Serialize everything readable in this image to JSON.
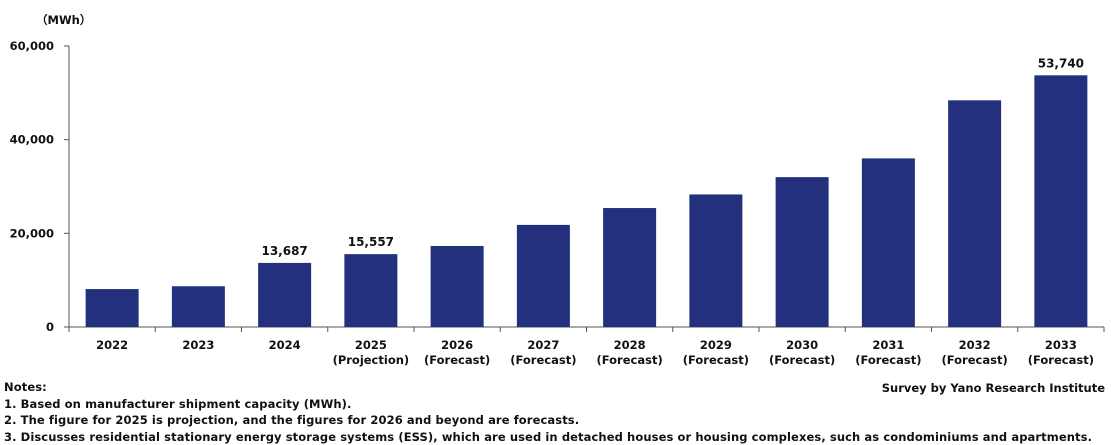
{
  "chart_data": {
    "type": "bar",
    "unit_label": "（MWh）",
    "categories": [
      [
        "2022",
        ""
      ],
      [
        "2023",
        ""
      ],
      [
        "2024",
        ""
      ],
      [
        "2025",
        "(Projection)"
      ],
      [
        "2026",
        "(Forecast)"
      ],
      [
        "2027",
        "(Forecast)"
      ],
      [
        "2028",
        "(Forecast)"
      ],
      [
        "2029",
        "(Forecast)"
      ],
      [
        "2030",
        "(Forecast)"
      ],
      [
        "2031",
        "(Forecast)"
      ],
      [
        "2032",
        "(Forecast)"
      ],
      [
        "2033",
        "(Forecast)"
      ]
    ],
    "values": [
      8100,
      8700,
      13687,
      15557,
      17300,
      21800,
      25400,
      28300,
      32000,
      36000,
      48400,
      53740
    ],
    "data_labels": [
      "",
      "",
      "13,687",
      "15,557",
      "",
      "",
      "",
      "",
      "",
      "",
      "",
      "53,740"
    ],
    "ylim": [
      0,
      60000
    ],
    "yticks": [
      0,
      20000,
      40000,
      60000
    ],
    "ytick_labels": [
      "0",
      "20,000",
      "40,000",
      "60,000"
    ],
    "grid": false,
    "bar_color": "#22307d"
  },
  "notes": {
    "heading": "Notes:",
    "items": [
      "1. Based on manufacturer shipment capacity (MWh).",
      "2. The figure for 2025 is projection, and the figures for 2026 and beyond are forecasts.",
      "3. Discusses residential stationary energy storage systems (ESS), which are used in detached houses or housing complexes, such as condominiums and apartments."
    ]
  },
  "source": "Survey by Yano Research Institute"
}
